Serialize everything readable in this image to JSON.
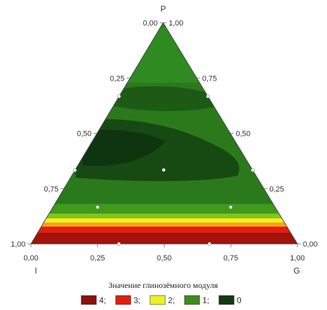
{
  "chart_data": {
    "type": "ternary-contour",
    "vertex_labels": {
      "top": "P",
      "left": "I",
      "right": "G"
    },
    "left_axis_ticks": [
      "1,00",
      "0,75",
      "0,50",
      "0,25",
      "0,00"
    ],
    "right_axis_ticks": [
      "1,00",
      "0,75",
      "0,50",
      "0,25",
      "0,00"
    ],
    "bottom_axis_ticks": [
      "0,00",
      "0,25",
      "0,50",
      "0,75",
      "1,00"
    ],
    "design_points": [
      {
        "P": 0.0,
        "I": 0.67,
        "G": 0.33
      },
      {
        "P": 0.0,
        "I": 0.33,
        "G": 0.67
      },
      {
        "P": 0.167,
        "I": 0.667,
        "G": 0.167
      },
      {
        "P": 0.167,
        "I": 0.167,
        "G": 0.667
      },
      {
        "P": 0.333,
        "I": 0.667,
        "G": 0.0
      },
      {
        "P": 0.333,
        "I": 0.333,
        "G": 0.333
      },
      {
        "P": 0.333,
        "I": 0.0,
        "G": 0.667
      },
      {
        "P": 0.667,
        "I": 0.333,
        "G": 0.0
      },
      {
        "P": 0.667,
        "I": 0.0,
        "G": 0.333
      }
    ],
    "legend": {
      "title": "Значение глинозёмного модуля",
      "entries": [
        {
          "label": "4;",
          "color": "#8b1208"
        },
        {
          "label": "3;",
          "color": "#e21e10"
        },
        {
          "label": "2;",
          "color": "#eef024"
        },
        {
          "label": "1;",
          "color": "#3c8c1c"
        },
        {
          "label": "0",
          "color": "#143810"
        }
      ]
    }
  }
}
